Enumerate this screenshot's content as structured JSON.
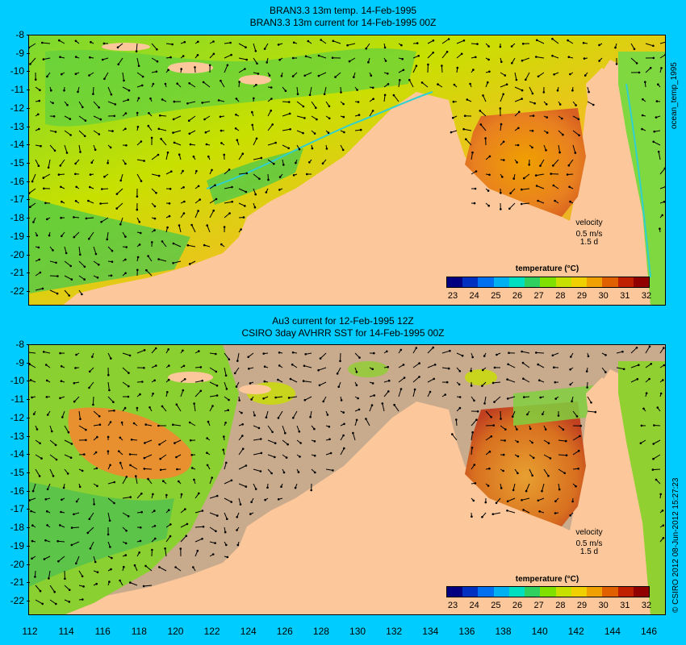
{
  "top_panel": {
    "title_line1": "BRAN3.3 13m temp. 14-Feb-1995",
    "title_line2": "BRAN3.3 13m current for 14-Feb-1995 00Z",
    "side_label": "ocean_temp_1995",
    "legend_title": "temperature (°C)",
    "velocity_label": "velocity",
    "velocity_scale": "0.5 m/s",
    "velocity_time": "1.5 d"
  },
  "bottom_panel": {
    "title_line1": "Au3 current for 12-Feb-1995 12Z",
    "title_line2": "CSIRO 3day AVHRR SST for 14-Feb-1995 00Z",
    "side_label": "© CSIRO 2012  08-Jun-2012 15:27:23",
    "legend_title": "temperature (°C)",
    "velocity_label": "velocity",
    "velocity_scale": "0.5 m/s",
    "velocity_time": "1.5 d"
  },
  "lat_ticks": [
    "-8",
    "-9",
    "-10",
    "-11",
    "-12",
    "-13",
    "-14",
    "-15",
    "-16",
    "-17",
    "-18",
    "-19",
    "-20",
    "-21",
    "-22"
  ],
  "lon_ticks": [
    "112",
    "114",
    "116",
    "118",
    "120",
    "122",
    "124",
    "126",
    "128",
    "130",
    "132",
    "134",
    "136",
    "138",
    "140",
    "142",
    "144",
    "146"
  ],
  "colorbar_ticks": [
    "23",
    "24",
    "25",
    "26",
    "27",
    "28",
    "29",
    "30",
    "31",
    "32"
  ],
  "colorbar_colors": [
    "#000080",
    "#0030c0",
    "#0070f0",
    "#00b0f0",
    "#00e0c0",
    "#30d060",
    "#80e000",
    "#c8e000",
    "#f0d000",
    "#f0a000",
    "#e06000",
    "#c02000",
    "#900000"
  ],
  "colors": {
    "background": "#00ccff",
    "land": "#fcc89b",
    "no_data": "#c8aa8c",
    "warm": "#e87a20",
    "mid": "#f0c020",
    "cool": "#30c040"
  }
}
